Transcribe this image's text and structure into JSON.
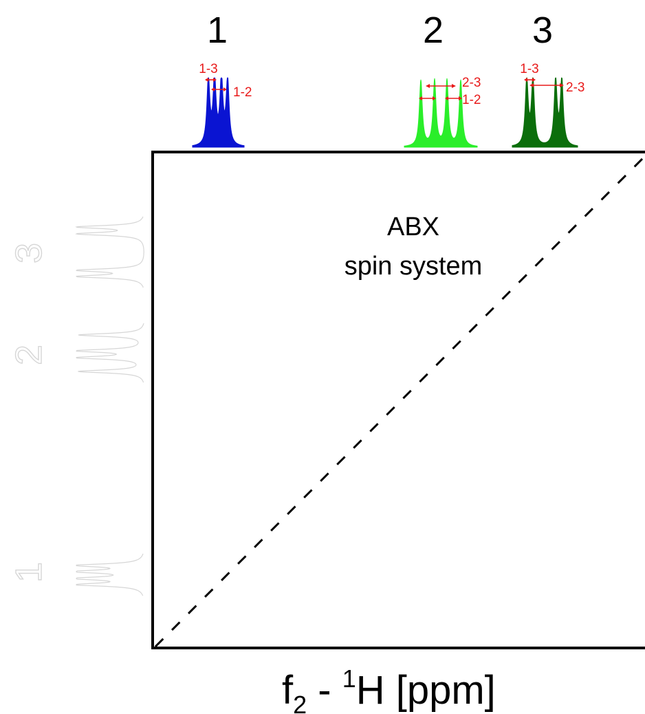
{
  "top_labels": [
    "1",
    "2",
    "3"
  ],
  "peak_labels": [
    "1-3",
    "1-2",
    "2-3",
    "1-2",
    "1-3",
    "2-3"
  ],
  "side_labels": [
    "3",
    "2",
    "1"
  ],
  "plot_text": {
    "line1": "ABX",
    "line2": "spin system"
  },
  "axis": {
    "f": "f",
    "sub": "2",
    "dash": " - ",
    "sup": "1",
    "rest": "H [ppm]"
  },
  "colors": {
    "peak1": "#0a14d2",
    "peak2": "#2aee2a",
    "peak3": "#0b6e0b",
    "coupling": "#e81a1a",
    "side": "#d6d6d6"
  }
}
